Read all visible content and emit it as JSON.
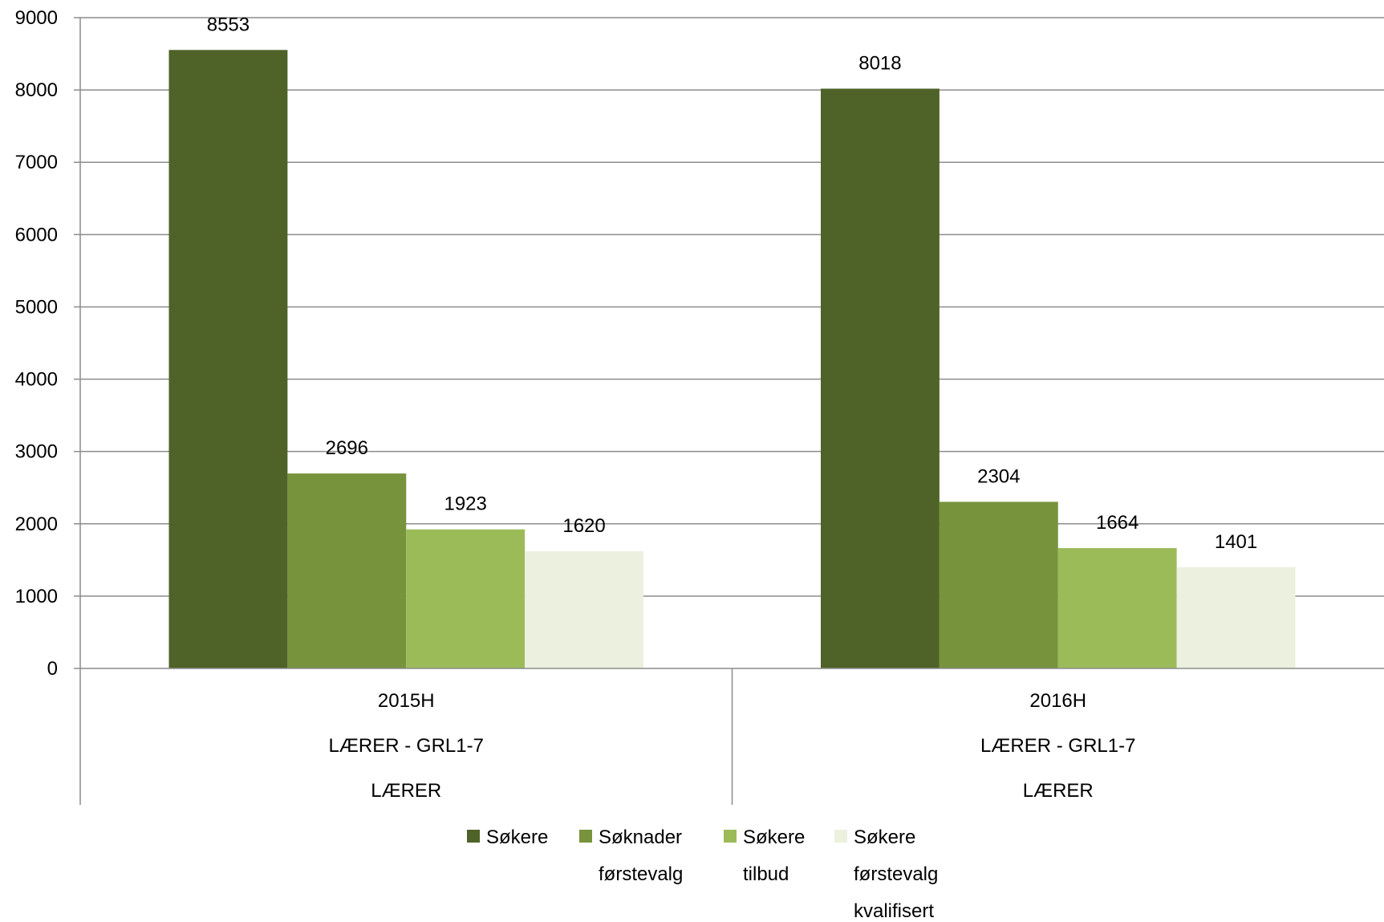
{
  "chart_data": {
    "type": "bar",
    "title": "",
    "xlabel": "",
    "ylabel": "",
    "ylim": [
      0,
      9000
    ],
    "yticks": [
      0,
      1000,
      2000,
      3000,
      4000,
      5000,
      6000,
      7000,
      8000,
      9000
    ],
    "grid": true,
    "legend_position": "bottom",
    "categories": [
      {
        "lines": [
          "2015H",
          "LÆRER - GRL1-7",
          "LÆRER"
        ]
      },
      {
        "lines": [
          "2016H",
          "LÆRER - GRL1-7",
          "LÆRER"
        ]
      }
    ],
    "series": [
      {
        "name": "Søkere",
        "legend_lines": [
          "Søkere"
        ],
        "color": "#4f6228",
        "values": [
          8553,
          8018
        ]
      },
      {
        "name": "Søknader førstevalg",
        "legend_lines": [
          "Søknader",
          "førstevalg"
        ],
        "color": "#77933c",
        "values": [
          2696,
          2304
        ]
      },
      {
        "name": "Søkere tilbud",
        "legend_lines": [
          "Søkere",
          "tilbud"
        ],
        "color": "#9bbb59",
        "values": [
          1923,
          1664
        ]
      },
      {
        "name": "Søkere førstevalg kvalifisert",
        "legend_lines": [
          "Søkere",
          "førstevalg",
          "kvalifisert"
        ],
        "color": "#ebf1de",
        "values": [
          1620,
          1401
        ]
      }
    ]
  }
}
